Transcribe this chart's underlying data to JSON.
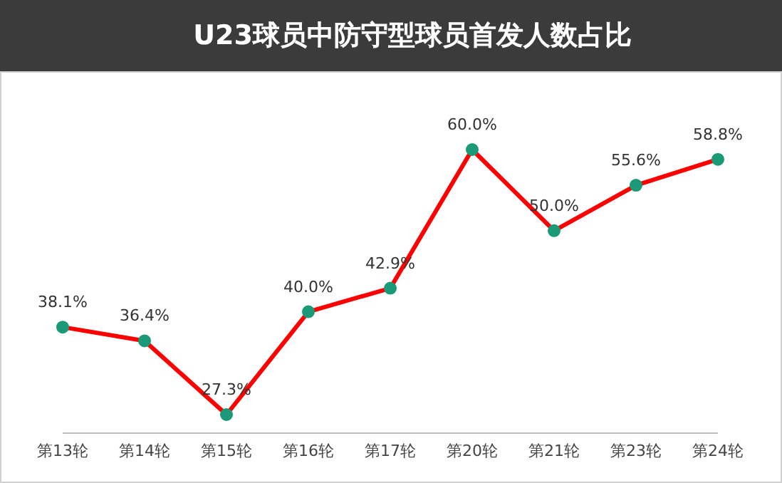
{
  "chart_data": {
    "type": "line",
    "title": "U23球员中防守型球员首发人数占比",
    "categories": [
      "第13轮",
      "第14轮",
      "第15轮",
      "第16轮",
      "第17轮",
      "第20轮",
      "第21轮",
      "第23轮",
      "第24轮"
    ],
    "series": [
      {
        "color": "#ff0000",
        "values": [
          38.1,
          36.4,
          27.3,
          40.0,
          42.9,
          60.0,
          50.0,
          55.6,
          58.8
        ],
        "value_labels": [
          "38.1%",
          "36.4%",
          "27.3%",
          "40.0%",
          "42.9%",
          "60.0%",
          "50.0%",
          "55.6%",
          "58.8%"
        ]
      }
    ],
    "marker": "circle",
    "grid": false,
    "legend": false
  }
}
